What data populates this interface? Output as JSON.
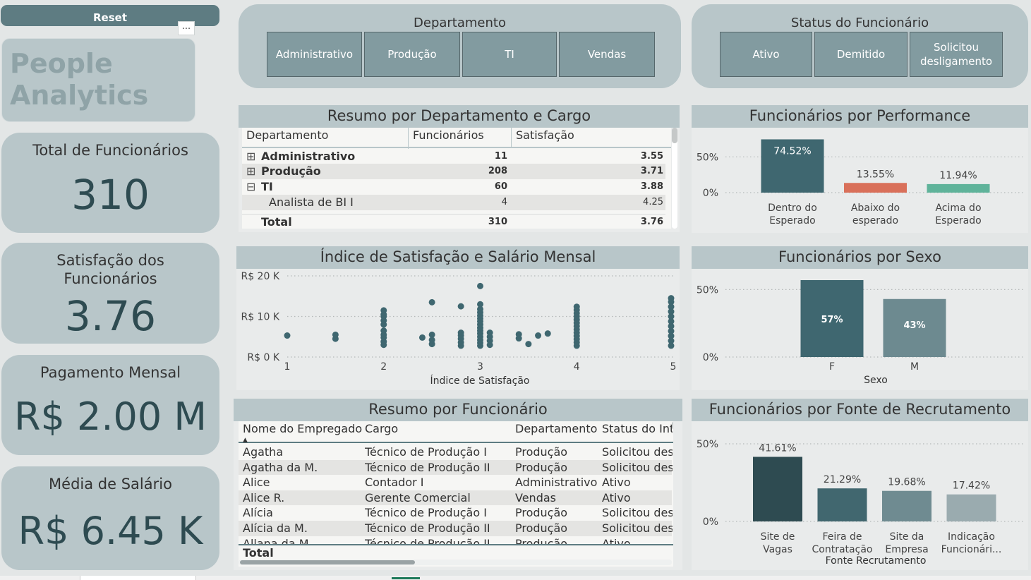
{
  "left": {
    "reset_label": "Reset",
    "more_label": "...",
    "logo_line1": "People",
    "logo_line2": "Analytics",
    "kpis": [
      {
        "label": "Total de Funcionários",
        "value": "310"
      },
      {
        "label_line1": "Satisfação dos",
        "label_line2": "Funcionários",
        "value": "3.76"
      },
      {
        "label": "Pagamento Mensal",
        "value": "R$ 2.00 M"
      },
      {
        "label": "Média de Salário",
        "value": "R$ 6.45 K"
      }
    ]
  },
  "slicers": {
    "departamento": {
      "title": "Departamento",
      "options": [
        "Administrativo",
        "Produção",
        "TI",
        "Vendas"
      ]
    },
    "status": {
      "title": "Status do Funcionário",
      "options": [
        "Ativo",
        "Demitido",
        "Solicitou desligamento"
      ]
    }
  },
  "resumo_dept": {
    "title": "Resumo por Departamento e Cargo",
    "columns": [
      "Departamento",
      "Funcionários",
      "Satisfação"
    ],
    "rows": [
      {
        "expand": "⊞",
        "name": "Administrativo",
        "func": "11",
        "sat": "3.55"
      },
      {
        "expand": "⊞",
        "name": "Produção",
        "func": "208",
        "sat": "3.71"
      },
      {
        "expand": "⊟",
        "name": "TI",
        "func": "60",
        "sat": "3.88"
      },
      {
        "expand": "",
        "name": "Analista de BI I",
        "func": "4",
        "sat": "4.25"
      }
    ],
    "total": {
      "name": "Total",
      "func": "310",
      "sat": "3.76"
    }
  },
  "resumo_func": {
    "title": "Resumo por Funcionário",
    "columns": [
      "Nome do Empregado",
      "Cargo",
      "Departamento",
      "Status do Int"
    ],
    "rows": [
      [
        "Agatha",
        "Técnico de Produção I",
        "Produção",
        "Solicitou desl"
      ],
      [
        "Agatha da M.",
        "Técnico de Produção II",
        "Produção",
        "Solicitou desl"
      ],
      [
        "Alice",
        "Contador I",
        "Administrativo",
        "Ativo"
      ],
      [
        "Alice R.",
        "Gerente Comercial",
        "Vendas",
        "Ativo"
      ],
      [
        "Alícia",
        "Técnico de Produção I",
        "Produção",
        "Solicitou desl"
      ],
      [
        "Alícia da M.",
        "Técnico de Produção II",
        "Produção",
        "Solicitou desl"
      ],
      [
        "Allana da M.",
        "Técnico de Produção II",
        "Produção",
        "Ativo"
      ]
    ],
    "total_label": "Total"
  },
  "chart_data": [
    {
      "id": "performance",
      "type": "bar",
      "title": "Funcionários por Performance",
      "categories": [
        "Dentro do Esperado",
        "Abaixo do esperado",
        "Acima do Esperado"
      ],
      "categories_display": [
        [
          "Dentro do",
          "Esperado"
        ],
        [
          "Abaixo do",
          "esperado"
        ],
        [
          "Acima do",
          "Esperado"
        ]
      ],
      "values": [
        74.52,
        13.55,
        11.94
      ],
      "value_labels": [
        "74.52%",
        "13.55%",
        "11.94%"
      ],
      "colors": [
        "#3f6770",
        "#d9705a",
        "#5fb39a"
      ],
      "yticks": [
        "50%",
        "0%"
      ],
      "ylim": [
        0,
        75
      ],
      "xlabel": "",
      "ylabel": ""
    },
    {
      "id": "sexo",
      "type": "bar",
      "title": "Funcionários por Sexo",
      "categories": [
        "F",
        "M"
      ],
      "values": [
        57,
        43
      ],
      "value_labels": [
        "57%",
        "43%"
      ],
      "colors": [
        "#3f6770",
        "#6d8a90"
      ],
      "yticks": [
        "50%",
        "0%"
      ],
      "ylim": [
        0,
        57
      ],
      "xlabel": "Sexo",
      "ylabel": ""
    },
    {
      "id": "recrutamento",
      "type": "bar",
      "title": "Funcionários por Fonte de Recrutamento",
      "categories": [
        "Site de Vagas",
        "Feira de Contratação",
        "Site da Empresa",
        "Indicação Funcionári..."
      ],
      "categories_display": [
        [
          "Site de",
          "Vagas"
        ],
        [
          "Feira de",
          "Contratação"
        ],
        [
          "Site da",
          "Empresa"
        ],
        [
          "Indicação",
          "Funcionári..."
        ]
      ],
      "values": [
        41.61,
        21.29,
        19.68,
        17.42
      ],
      "value_labels": [
        "41.61%",
        "21.29%",
        "19.68%",
        "17.42%"
      ],
      "colors": [
        "#2e4b51",
        "#41676f",
        "#6f8b91",
        "#9aabaf"
      ],
      "yticks": [
        "50%",
        "0%"
      ],
      "ylim": [
        0,
        50
      ],
      "xlabel": "Fonte Recrutamento",
      "ylabel": ""
    },
    {
      "id": "satisfacao_salario",
      "type": "scatter",
      "title": "Índice de Satisfação e Salário Mensal",
      "xlabel": "Índice de Satisfação",
      "ylabel": "",
      "xlim": [
        1,
        5
      ],
      "ylim": [
        0,
        20
      ],
      "xticks": [
        "1",
        "2",
        "3",
        "4",
        "5"
      ],
      "yticks": [
        "R$ 20 K",
        "R$ 10 K",
        "R$ 0 K"
      ],
      "color": "#3f6770",
      "points": [
        [
          1,
          5.3
        ],
        [
          1.5,
          4.5
        ],
        [
          1.5,
          5.5
        ],
        [
          2,
          3.0
        ],
        [
          2,
          3.8
        ],
        [
          2,
          4.8
        ],
        [
          2,
          5.5
        ],
        [
          2,
          6.5
        ],
        [
          2,
          8.0
        ],
        [
          2,
          9.0
        ],
        [
          2,
          10.0
        ],
        [
          2,
          10.5
        ],
        [
          2,
          11.5
        ],
        [
          2.4,
          4.8
        ],
        [
          2.5,
          3.2
        ],
        [
          2.5,
          4.2
        ],
        [
          2.5,
          5.5
        ],
        [
          2.5,
          13.5
        ],
        [
          2.8,
          2.8
        ],
        [
          2.8,
          3.6
        ],
        [
          2.8,
          4.5
        ],
        [
          2.8,
          5.3
        ],
        [
          2.8,
          6.0
        ],
        [
          2.8,
          12.5
        ],
        [
          3,
          2.8
        ],
        [
          3,
          3.5
        ],
        [
          3,
          4.2
        ],
        [
          3,
          5.0
        ],
        [
          3,
          5.8
        ],
        [
          3,
          6.5
        ],
        [
          3,
          7.2
        ],
        [
          3,
          8.0
        ],
        [
          3,
          8.8
        ],
        [
          3,
          9.5
        ],
        [
          3,
          10.2
        ],
        [
          3,
          11.0
        ],
        [
          3,
          11.8
        ],
        [
          3,
          13.0
        ],
        [
          3,
          17.5
        ],
        [
          3.1,
          3.0
        ],
        [
          3.1,
          4.0
        ],
        [
          3.1,
          5.0
        ],
        [
          3.1,
          6.0
        ],
        [
          3.4,
          4.6
        ],
        [
          3.4,
          5.6
        ],
        [
          3.5,
          3.2
        ],
        [
          3.6,
          5.3
        ],
        [
          3.7,
          5.8
        ],
        [
          4,
          2.8
        ],
        [
          4,
          3.6
        ],
        [
          4,
          4.4
        ],
        [
          4,
          5.2
        ],
        [
          4,
          6.0
        ],
        [
          4,
          6.8
        ],
        [
          4,
          7.6
        ],
        [
          4,
          8.4
        ],
        [
          4,
          9.2
        ],
        [
          4,
          10.0
        ],
        [
          4,
          10.8
        ],
        [
          4,
          11.6
        ],
        [
          4,
          12.4
        ],
        [
          5,
          2.8
        ],
        [
          5,
          4.0
        ],
        [
          5,
          5.2
        ],
        [
          5,
          6.4
        ],
        [
          5,
          7.6
        ],
        [
          5,
          8.8
        ],
        [
          5,
          10.0
        ],
        [
          5,
          11.2
        ],
        [
          5,
          12.4
        ],
        [
          5,
          13.6
        ],
        [
          5,
          14.5
        ]
      ]
    }
  ]
}
